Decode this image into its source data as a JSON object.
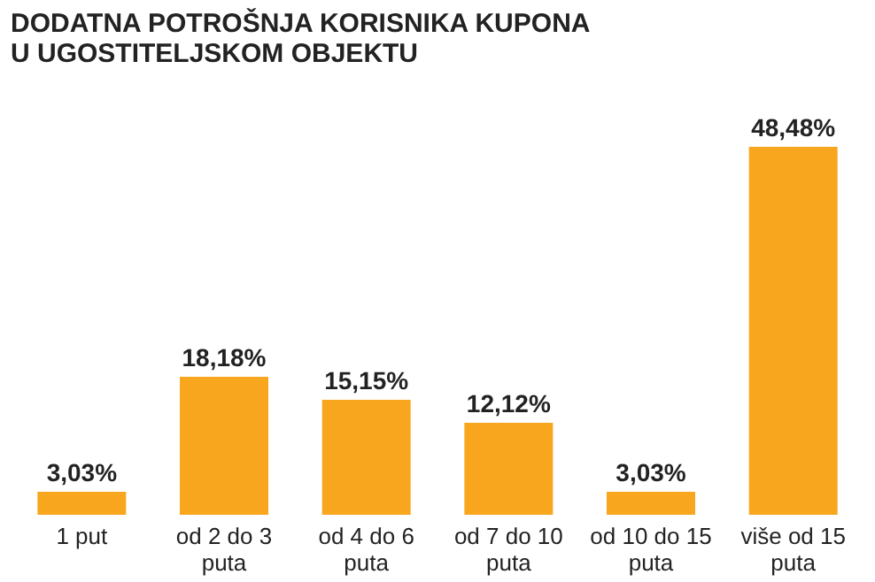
{
  "chart_data": {
    "type": "bar",
    "title": "DODATNA POTROŠNJA KORISNIKA KUPONA U UGOSTITELJSKOM OBJEKTU",
    "categories": [
      "1 put",
      "od 2 do 3 puta",
      "od 4 do 6 puta",
      "od 7 do 10 puta",
      "od 10 do 15 puta",
      "više od 15 puta"
    ],
    "values": [
      3.03,
      18.18,
      15.15,
      12.12,
      3.03,
      48.48
    ],
    "value_labels": [
      "3,03%",
      "18,18%",
      "15,15%",
      "12,12%",
      "3,03%",
      "48,48%"
    ],
    "color": "#f9a61f"
  }
}
